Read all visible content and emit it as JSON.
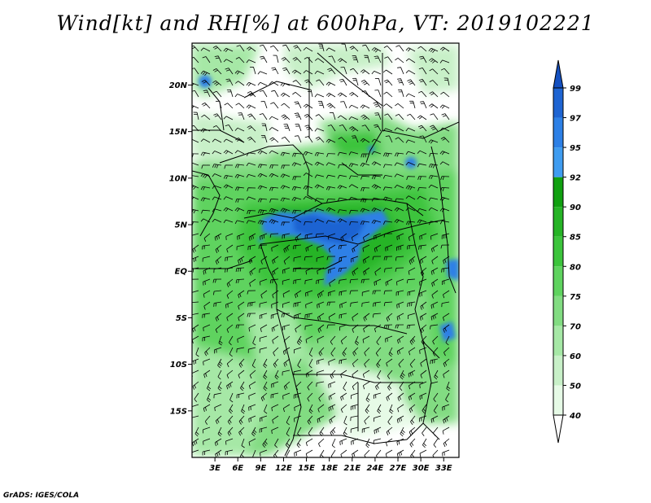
{
  "title": "Wind[kt] and RH[%] at 600hPa, VT: 2019102221",
  "credit": "GrADS: IGES/COLA",
  "lat_ticks": [
    {
      "lat": 20,
      "label": "20N"
    },
    {
      "lat": 15,
      "label": "15N"
    },
    {
      "lat": 10,
      "label": "10N"
    },
    {
      "lat": 5,
      "label": "5N"
    },
    {
      "lat": 0,
      "label": "EQ"
    },
    {
      "lat": -5,
      "label": "5S"
    },
    {
      "lat": -10,
      "label": "10S"
    },
    {
      "lat": -15,
      "label": "15S"
    }
  ],
  "lon_ticks": [
    {
      "lon": 3,
      "label": "3E"
    },
    {
      "lon": 6,
      "label": "6E"
    },
    {
      "lon": 9,
      "label": "9E"
    },
    {
      "lon": 12,
      "label": "12E"
    },
    {
      "lon": 15,
      "label": "15E"
    },
    {
      "lon": 18,
      "label": "18E"
    },
    {
      "lon": 21,
      "label": "21E"
    },
    {
      "lon": 24,
      "label": "24E"
    },
    {
      "lon": 27,
      "label": "27E"
    },
    {
      "lon": 30,
      "label": "30E"
    },
    {
      "lon": 33,
      "label": "33E"
    }
  ],
  "extent": {
    "lon_min": 0,
    "lon_max": 35,
    "lat_min": -20,
    "lat_max": 24.5
  },
  "colorbar": {
    "levels": [
      "40",
      "50",
      "60",
      "70",
      "75",
      "80",
      "85",
      "90",
      "92",
      "95",
      "97",
      "99"
    ],
    "colors": [
      "#ffffff",
      "#e6fae6",
      "#c8f0c8",
      "#a6e8a6",
      "#82dc82",
      "#5fd35f",
      "#3cc43c",
      "#26b426",
      "#10a010",
      "#3f9cf0",
      "#2d80e6",
      "#1e64d2",
      "#1450c0"
    ]
  }
}
